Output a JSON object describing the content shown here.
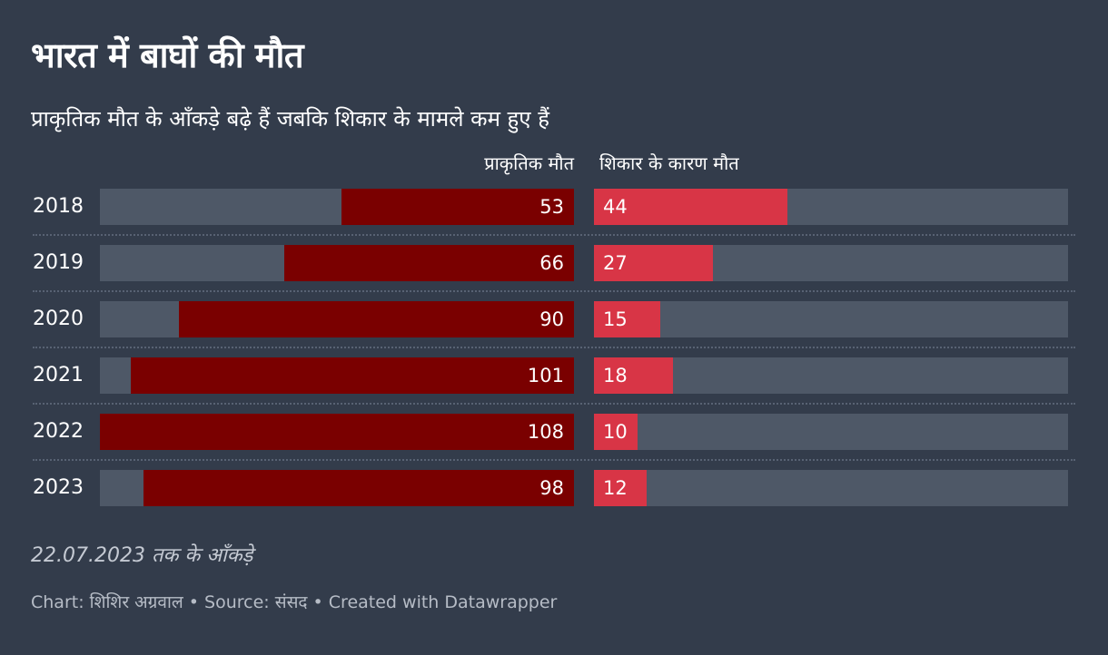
{
  "title": "भारत में बाघों की मौत",
  "subtitle": "प्राकृतिक मौत के आँकड़े बढ़े हैं जबकि शिकार के मामले कम हुए हैं",
  "note": "22.07.2023 तक के आँकड़े",
  "footer": "Chart: शिशिर अग्रवाल • Source: संसद • Created with Datawrapper",
  "colors": {
    "background": "#333c4b",
    "natural": "#7a0000",
    "poaching": "#d83546",
    "track": "#4e5867"
  },
  "chart_data": {
    "type": "bar",
    "title": "भारत में बाघों की मौत",
    "categories": [
      "2018",
      "2019",
      "2020",
      "2021",
      "2022",
      "2023"
    ],
    "series": [
      {
        "name": "प्राकृतिक मौत",
        "values": [
          53,
          66,
          90,
          101,
          108,
          98
        ],
        "direction": "right-to-left"
      },
      {
        "name": "शिकार के कारण मौत",
        "values": [
          44,
          27,
          15,
          18,
          10,
          12
        ],
        "direction": "left-to-right"
      }
    ],
    "xlim": [
      0,
      108
    ],
    "legend": "column-headers"
  }
}
